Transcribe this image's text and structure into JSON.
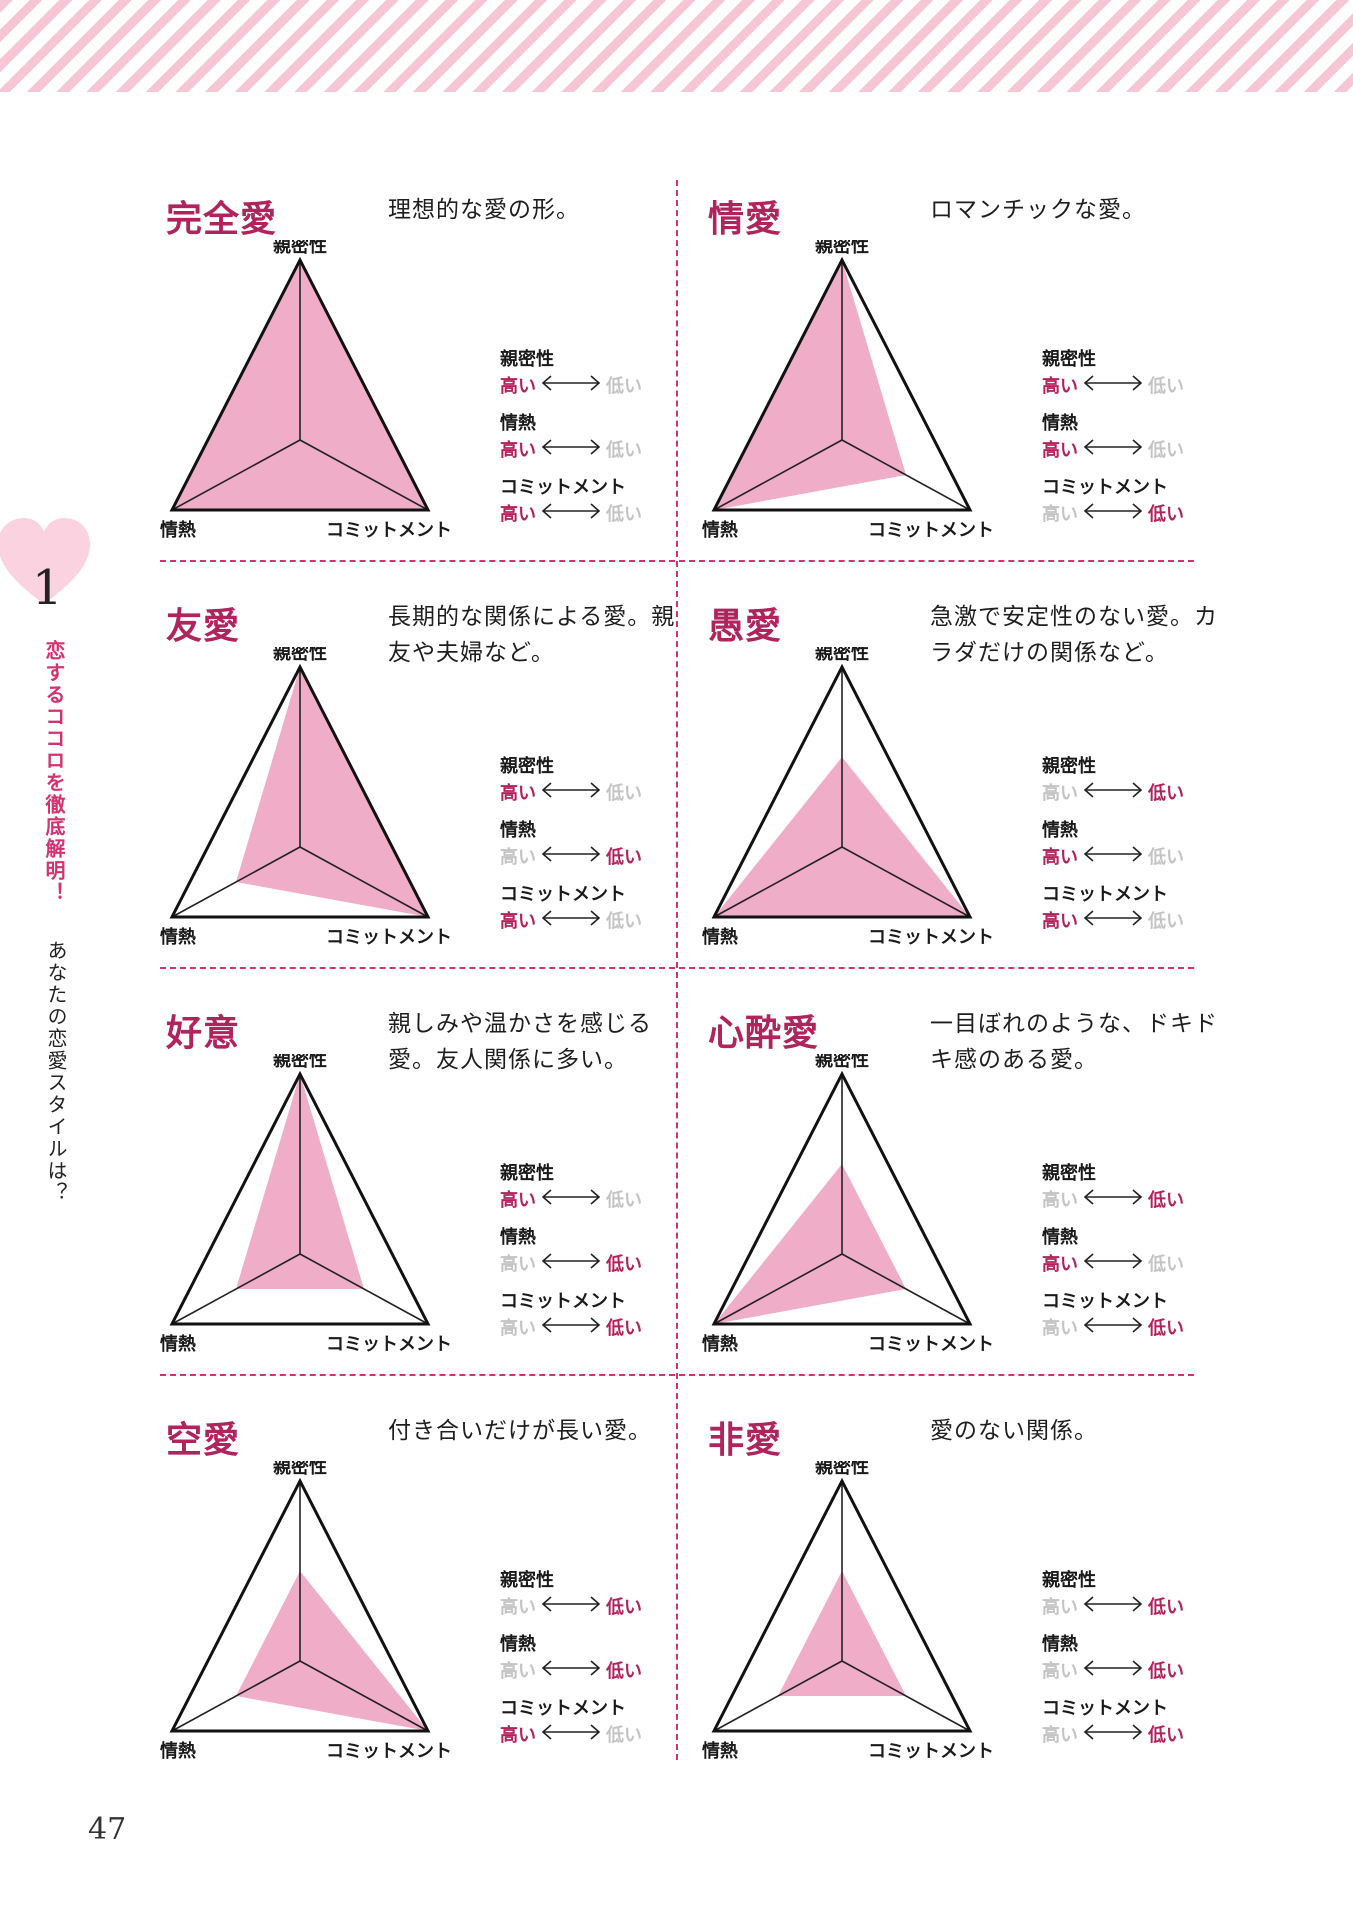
{
  "colors": {
    "accent": "#b0245d",
    "fill": "#f0adc7",
    "inactive": "#c4c4c4",
    "divider": "#d0336f",
    "stripe": "#f7c6d4"
  },
  "side": {
    "chapter": "1",
    "title": "恋するココロを徹底解明！",
    "subtitle": "あなたの恋愛スタイルは？"
  },
  "page_number": "47",
  "axes": {
    "top": "親密性",
    "left": "情熱",
    "right": "コミットメント"
  },
  "legend": {
    "high": "高い",
    "low": "低い",
    "arrow": "⟷"
  },
  "panels": [
    {
      "title": "完全愛",
      "desc": "理想的な愛の形。",
      "levels": {
        "intimacy": 1.0,
        "passion": 1.0,
        "commitment": 1.0
      },
      "legend": [
        {
          "name": "親密性",
          "value": "high"
        },
        {
          "name": "情熱",
          "value": "high"
        },
        {
          "name": "コミットメント",
          "value": "high"
        }
      ]
    },
    {
      "title": "情愛",
      "desc": "ロマンチックな愛。",
      "levels": {
        "intimacy": 1.0,
        "passion": 1.0,
        "commitment": 0.5
      },
      "legend": [
        {
          "name": "親密性",
          "value": "high"
        },
        {
          "name": "情熱",
          "value": "high"
        },
        {
          "name": "コミットメント",
          "value": "low"
        }
      ]
    },
    {
      "title": "友愛",
      "desc": "長期的な関係による愛。親友や夫婦など。",
      "levels": {
        "intimacy": 1.0,
        "passion": 0.5,
        "commitment": 1.0
      },
      "legend": [
        {
          "name": "親密性",
          "value": "high"
        },
        {
          "name": "情熱",
          "value": "low"
        },
        {
          "name": "コミットメント",
          "value": "high"
        }
      ]
    },
    {
      "title": "愚愛",
      "desc": "急激で安定性のない愛。カラダだけの関係など。",
      "levels": {
        "intimacy": 0.5,
        "passion": 1.0,
        "commitment": 1.0
      },
      "legend": [
        {
          "name": "親密性",
          "value": "low"
        },
        {
          "name": "情熱",
          "value": "high"
        },
        {
          "name": "コミットメント",
          "value": "high"
        }
      ]
    },
    {
      "title": "好意",
      "desc": "親しみや温かさを感じる愛。友人関係に多い。",
      "levels": {
        "intimacy": 1.0,
        "passion": 0.5,
        "commitment": 0.5
      },
      "legend": [
        {
          "name": "親密性",
          "value": "high"
        },
        {
          "name": "情熱",
          "value": "low"
        },
        {
          "name": "コミットメント",
          "value": "low"
        }
      ]
    },
    {
      "title": "心酔愛",
      "desc": "一目ぼれのような、ドキドキ感のある愛。",
      "levels": {
        "intimacy": 0.5,
        "passion": 1.0,
        "commitment": 0.5
      },
      "legend": [
        {
          "name": "親密性",
          "value": "low"
        },
        {
          "name": "情熱",
          "value": "high"
        },
        {
          "name": "コミットメント",
          "value": "low"
        }
      ]
    },
    {
      "title": "空愛",
      "desc": "付き合いだけが長い愛。",
      "levels": {
        "intimacy": 0.5,
        "passion": 0.5,
        "commitment": 1.0
      },
      "legend": [
        {
          "name": "親密性",
          "value": "low"
        },
        {
          "name": "情熱",
          "value": "low"
        },
        {
          "name": "コミットメント",
          "value": "high"
        }
      ]
    },
    {
      "title": "非愛",
      "desc": "愛のない関係。",
      "levels": {
        "intimacy": 0.5,
        "passion": 0.5,
        "commitment": 0.5
      },
      "legend": [
        {
          "name": "親密性",
          "value": "low"
        },
        {
          "name": "情熱",
          "value": "low"
        },
        {
          "name": "コミットメント",
          "value": "low"
        }
      ]
    }
  ]
}
